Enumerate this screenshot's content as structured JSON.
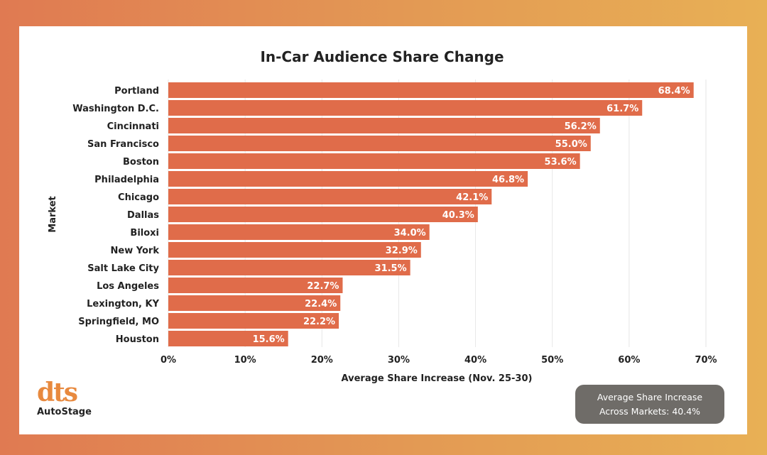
{
  "chart_data": {
    "type": "bar",
    "orientation": "horizontal",
    "title": "In-Car Audience Share Change",
    "xlabel": "Average Share Increase (Nov. 25-30)",
    "ylabel": "Market",
    "categories": [
      "Portland",
      "Washington D.C.",
      "Cincinnati",
      "San Francisco",
      "Boston",
      "Philadelphia",
      "Chicago",
      "Dallas",
      "Biloxi",
      "New York",
      "Salt Lake City",
      "Los Angeles",
      "Lexington, KY",
      "Springfield, MO",
      "Houston"
    ],
    "values": [
      68.4,
      61.7,
      56.2,
      55.0,
      53.6,
      46.8,
      42.1,
      40.3,
      34.0,
      32.9,
      31.5,
      22.7,
      22.4,
      22.2,
      15.6
    ],
    "data_labels": [
      "68.4%",
      "61.7%",
      "56.2%",
      "55.0%",
      "53.6%",
      "46.8%",
      "42.1%",
      "40.3%",
      "34.0%",
      "32.9%",
      "31.5%",
      "22.7%",
      "22.4%",
      "22.2%",
      "15.6%"
    ],
    "xlim": [
      0,
      70
    ],
    "xticks": [
      0,
      10,
      20,
      30,
      40,
      50,
      60,
      70
    ],
    "xtick_labels": [
      "0%",
      "10%",
      "20%",
      "30%",
      "40%",
      "50%",
      "60%",
      "70%"
    ],
    "grid": "vertical",
    "bar_color": "#e06c4a"
  },
  "annotation": {
    "line1": "Average Share Increase",
    "line2": "Across Markets: 40.4%"
  },
  "logo": {
    "mark": "dts",
    "sub": "AutoStage"
  }
}
